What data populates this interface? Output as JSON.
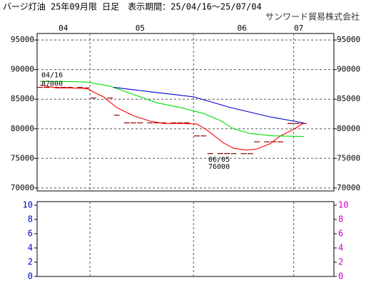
{
  "chart_data": {
    "type": "line",
    "title": "バージ灯油 25年09月限 日足　表示期間：25/04/16～25/07/04",
    "source": "サンワード貿易株式会社",
    "months": [
      "04",
      "05",
      "06",
      "07"
    ],
    "ylim": [
      69500,
      96100
    ],
    "yticks": [
      70000,
      75000,
      80000,
      85000,
      90000,
      95000
    ],
    "series": [
      {
        "color": "#ff0000",
        "x": [
          "04/16",
          "04/21",
          "04/25",
          "04/30",
          "05/05",
          "05/09",
          "05/14",
          "05/19",
          "05/23",
          "05/28",
          "06/02",
          "06/05",
          "06/10",
          "06/13",
          "06/17",
          "06/20",
          "06/24",
          "06/27",
          "07/01",
          "07/04"
        ],
        "values": [
          87400,
          86900,
          86900,
          86800,
          85400,
          83600,
          82200,
          81300,
          80900,
          80900,
          80800,
          79800,
          77600,
          76700,
          76400,
          76600,
          77500,
          78800,
          79900,
          81000
        ]
      },
      {
        "color": "#00dd00",
        "x": [
          "04/16",
          "04/23",
          "04/30",
          "05/07",
          "05/14",
          "05/21",
          "05/28",
          "06/04",
          "06/09",
          "06/13",
          "06/18",
          "06/25",
          "07/04"
        ],
        "values": [
          88000,
          88000,
          87900,
          87200,
          85800,
          84400,
          83600,
          82600,
          81400,
          80000,
          79200,
          78800,
          78700
        ]
      },
      {
        "color": "#0000cc",
        "x": [
          "05/08",
          "05/20",
          "06/01",
          "06/12",
          "06/24",
          "07/04"
        ],
        "values": [
          87000,
          86200,
          85400,
          83600,
          82000,
          81000
        ]
      }
    ],
    "ticks_bar": {
      "color": "#990000",
      "x": [
        "04/16",
        "04/18",
        "04/21",
        "04/23",
        "04/25",
        "04/28",
        "04/30",
        "05/02",
        "05/07",
        "05/09",
        "05/12",
        "05/14",
        "05/16",
        "05/19",
        "05/21",
        "05/23",
        "05/26",
        "05/28",
        "05/30",
        "06/02",
        "06/04",
        "06/06",
        "06/09",
        "06/11",
        "06/13",
        "06/16",
        "06/18",
        "06/20",
        "06/23",
        "06/25",
        "06/27",
        "06/30",
        "07/02",
        "07/04"
      ],
      "values": [
        87000,
        87000,
        87000,
        87000,
        87000,
        87000,
        86900,
        85200,
        85200,
        82300,
        81000,
        81000,
        81000,
        81000,
        81000,
        81000,
        81000,
        81000,
        81000,
        78800,
        78800,
        75800,
        75800,
        75800,
        75800,
        75800,
        75800,
        77800,
        77800,
        77800,
        77800,
        80900,
        80900,
        80900
      ]
    },
    "annotations": [
      {
        "date": "04/16",
        "value": 87000
      },
      {
        "date": "06/05",
        "value": 76000
      }
    ],
    "lower_ylim": [
      0,
      10.5
    ],
    "lower_yticks": [
      0,
      2,
      4,
      6,
      8,
      10
    ]
  }
}
